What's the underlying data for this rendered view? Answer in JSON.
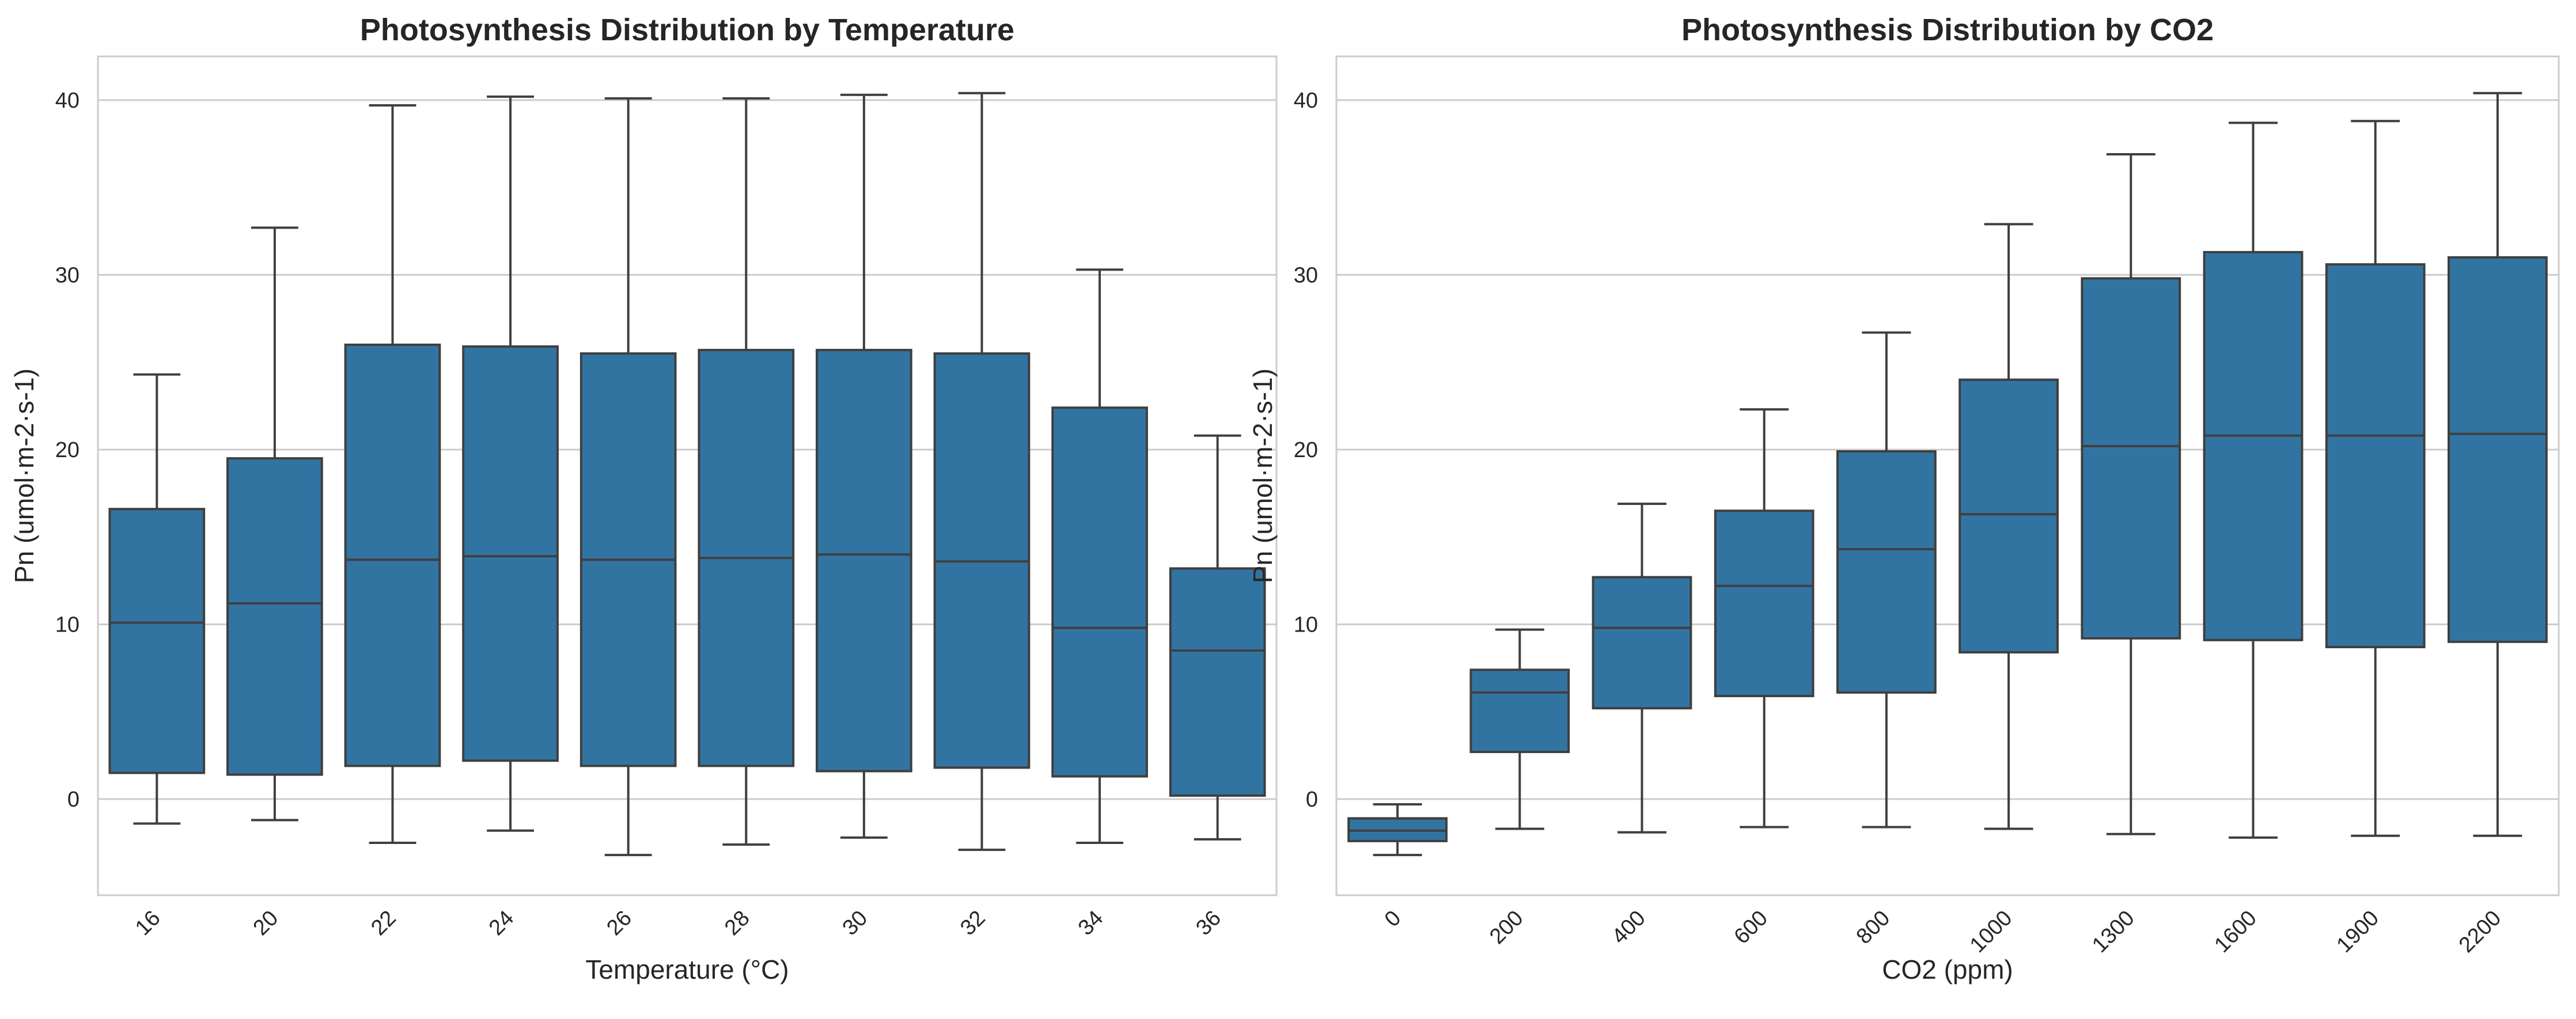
{
  "chart_data": [
    {
      "type": "box",
      "title": "Photosynthesis Distribution by Temperature",
      "xlabel": "Temperature (°C)",
      "ylabel": "Pn (umol·m-2·s-1)",
      "ylim": [
        -5.5,
        42.5
      ],
      "yticks": [
        0,
        10,
        20,
        30,
        40
      ],
      "grid": "horizontal",
      "color": "#3274a1",
      "categories": [
        "16",
        "20",
        "22",
        "24",
        "26",
        "28",
        "30",
        "32",
        "34",
        "36"
      ],
      "boxes": [
        {
          "whisker_low": -1.4,
          "q1": 1.5,
          "median": 10.1,
          "q3": 16.6,
          "whisker_high": 24.3
        },
        {
          "whisker_low": -1.2,
          "q1": 1.4,
          "median": 11.2,
          "q3": 19.5,
          "whisker_high": 32.7
        },
        {
          "whisker_low": -2.5,
          "q1": 1.9,
          "median": 13.7,
          "q3": 26.0,
          "whisker_high": 39.7
        },
        {
          "whisker_low": -1.8,
          "q1": 2.2,
          "median": 13.9,
          "q3": 25.9,
          "whisker_high": 40.2
        },
        {
          "whisker_low": -3.2,
          "q1": 1.9,
          "median": 13.7,
          "q3": 25.5,
          "whisker_high": 40.1
        },
        {
          "whisker_low": -2.6,
          "q1": 1.9,
          "median": 13.8,
          "q3": 25.7,
          "whisker_high": 40.1
        },
        {
          "whisker_low": -2.2,
          "q1": 1.6,
          "median": 14.0,
          "q3": 25.7,
          "whisker_high": 40.3
        },
        {
          "whisker_low": -2.9,
          "q1": 1.8,
          "median": 13.6,
          "q3": 25.5,
          "whisker_high": 40.4
        },
        {
          "whisker_low": -2.5,
          "q1": 1.3,
          "median": 9.8,
          "q3": 22.4,
          "whisker_high": 30.3
        },
        {
          "whisker_low": -2.3,
          "q1": 0.2,
          "median": 8.5,
          "q3": 13.2,
          "whisker_high": 20.8
        }
      ]
    },
    {
      "type": "box",
      "title": "Photosynthesis Distribution by CO2",
      "xlabel": "CO2 (ppm)",
      "ylabel": "Pn (umol·m-2·s-1)",
      "ylim": [
        -5.5,
        42.5
      ],
      "yticks": [
        0,
        10,
        20,
        30,
        40
      ],
      "grid": "horizontal",
      "color": "#3274a1",
      "categories": [
        "0",
        "200",
        "400",
        "600",
        "800",
        "1000",
        "1300",
        "1600",
        "1900",
        "2200"
      ],
      "boxes": [
        {
          "whisker_low": -3.2,
          "q1": -2.4,
          "median": -1.8,
          "q3": -1.1,
          "whisker_high": -0.3
        },
        {
          "whisker_low": -1.7,
          "q1": 2.7,
          "median": 6.1,
          "q3": 7.4,
          "whisker_high": 9.7
        },
        {
          "whisker_low": -1.9,
          "q1": 5.2,
          "median": 9.8,
          "q3": 12.7,
          "whisker_high": 16.9
        },
        {
          "whisker_low": -1.6,
          "q1": 5.9,
          "median": 12.2,
          "q3": 16.5,
          "whisker_high": 22.3
        },
        {
          "whisker_low": -1.6,
          "q1": 6.1,
          "median": 14.3,
          "q3": 19.9,
          "whisker_high": 26.7
        },
        {
          "whisker_low": -1.7,
          "q1": 8.4,
          "median": 16.3,
          "q3": 24.0,
          "whisker_high": 32.9
        },
        {
          "whisker_low": -2.0,
          "q1": 9.2,
          "median": 20.2,
          "q3": 29.8,
          "whisker_high": 36.9
        },
        {
          "whisker_low": -2.2,
          "q1": 9.1,
          "median": 20.8,
          "q3": 31.3,
          "whisker_high": 38.7
        },
        {
          "whisker_low": -2.1,
          "q1": 8.7,
          "median": 20.8,
          "q3": 30.6,
          "whisker_high": 38.8
        },
        {
          "whisker_low": -2.1,
          "q1": 9.0,
          "median": 20.9,
          "q3": 31.0,
          "whisker_high": 40.4
        }
      ]
    }
  ]
}
